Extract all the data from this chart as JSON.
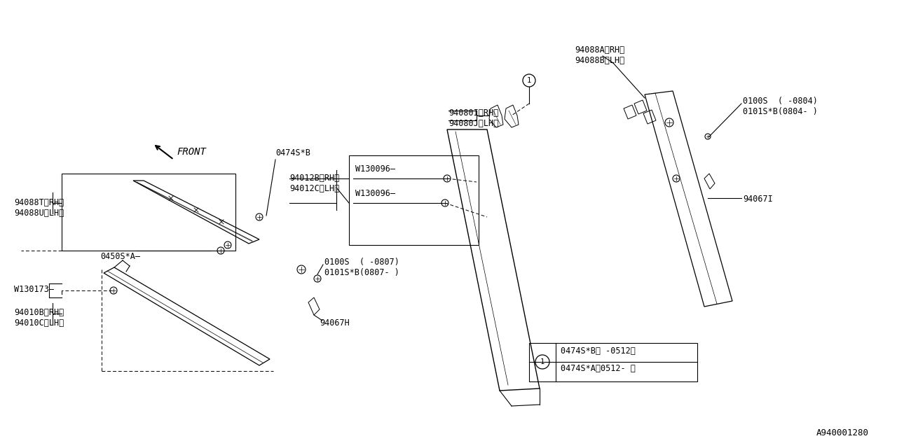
{
  "bg_color": "#ffffff",
  "line_color": "#000000",
  "fig_width": 12.8,
  "fig_height": 6.4,
  "part_number_bottom_right": "A940001280",
  "labels": {
    "front_arrow": "FRONT",
    "p1": "94088A〈RH〉",
    "p2": "94088B〈LH〉",
    "p3": "0100S  ( -0804)",
    "p4": "0101S*B(0804- )",
    "p5": "94080I〈RH〉",
    "p6": "94080J〈LH〉",
    "p7": "0474S*B",
    "p8": "94012B〈RH〉",
    "p9": "94012C〈LH〉",
    "p10": "W130096",
    "p11": "W130096",
    "p12": "94067I",
    "p13": "94088T〈RH〉",
    "p14": "94088U〈LH〉",
    "p15": "0450S*A",
    "p16": "W130173",
    "p17": "94010B〈RH〉",
    "p18": "94010C〈LH〉",
    "p19": "0100S  ( -0807)",
    "p20": "0101S*B(0807- )",
    "p21": "94067H",
    "legend_row1": "0474S*B〈 -0512〉",
    "legend_row2": "0474S*A〈0512- 〉"
  }
}
